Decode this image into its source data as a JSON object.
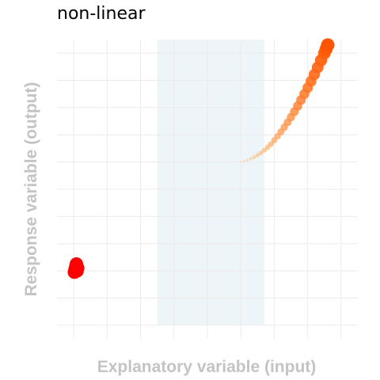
{
  "chart_data": {
    "type": "scatter",
    "title": "non-linear",
    "xlabel": "Explanatory variable (input)",
    "ylabel": "Response variable (output)",
    "xlim": [
      -0.5,
      8.5
    ],
    "ylim": [
      -0.5,
      10.5
    ],
    "grid": true,
    "highlight_band": {
      "x": [
        2.5,
        5.7
      ],
      "color": "#eef5f8"
    },
    "series": [
      {
        "color": "#ff0000",
        "points": [
          {
            "x": 0.02,
            "y": 1.95
          },
          {
            "x": 0.04,
            "y": 2.05
          },
          {
            "x": 0.06,
            "y": 2.15
          },
          {
            "x": 0.08,
            "y": 2.25
          },
          {
            "x": 0.1,
            "y": 2.0
          },
          {
            "x": 0.12,
            "y": 2.1
          }
        ]
      },
      {
        "color_start": "#ffd28c",
        "color_end": "#ff5500",
        "points": [
          {
            "x": 5.0,
            "y": 6.0
          },
          {
            "x": 5.1,
            "y": 6.03
          },
          {
            "x": 5.2,
            "y": 6.07
          },
          {
            "x": 5.3,
            "y": 6.12
          },
          {
            "x": 5.4,
            "y": 6.18
          },
          {
            "x": 5.5,
            "y": 6.25
          },
          {
            "x": 5.6,
            "y": 6.33
          },
          {
            "x": 5.7,
            "y": 6.43
          },
          {
            "x": 5.8,
            "y": 6.54
          },
          {
            "x": 5.9,
            "y": 6.66
          },
          {
            "x": 6.0,
            "y": 6.8
          },
          {
            "x": 6.1,
            "y": 6.95
          },
          {
            "x": 6.2,
            "y": 7.11
          },
          {
            "x": 6.3,
            "y": 7.28
          },
          {
            "x": 6.4,
            "y": 7.46
          },
          {
            "x": 6.5,
            "y": 7.65
          },
          {
            "x": 6.6,
            "y": 7.85
          },
          {
            "x": 6.7,
            "y": 8.06
          },
          {
            "x": 6.8,
            "y": 8.28
          },
          {
            "x": 6.9,
            "y": 8.5
          },
          {
            "x": 7.0,
            "y": 8.73
          },
          {
            "x": 7.1,
            "y": 8.97
          },
          {
            "x": 7.2,
            "y": 9.22
          },
          {
            "x": 7.3,
            "y": 9.48
          },
          {
            "x": 7.4,
            "y": 9.74
          },
          {
            "x": 7.5,
            "y": 10.0
          },
          {
            "x": 7.55,
            "y": 10.15
          },
          {
            "x": 7.6,
            "y": 10.3
          }
        ]
      }
    ]
  }
}
